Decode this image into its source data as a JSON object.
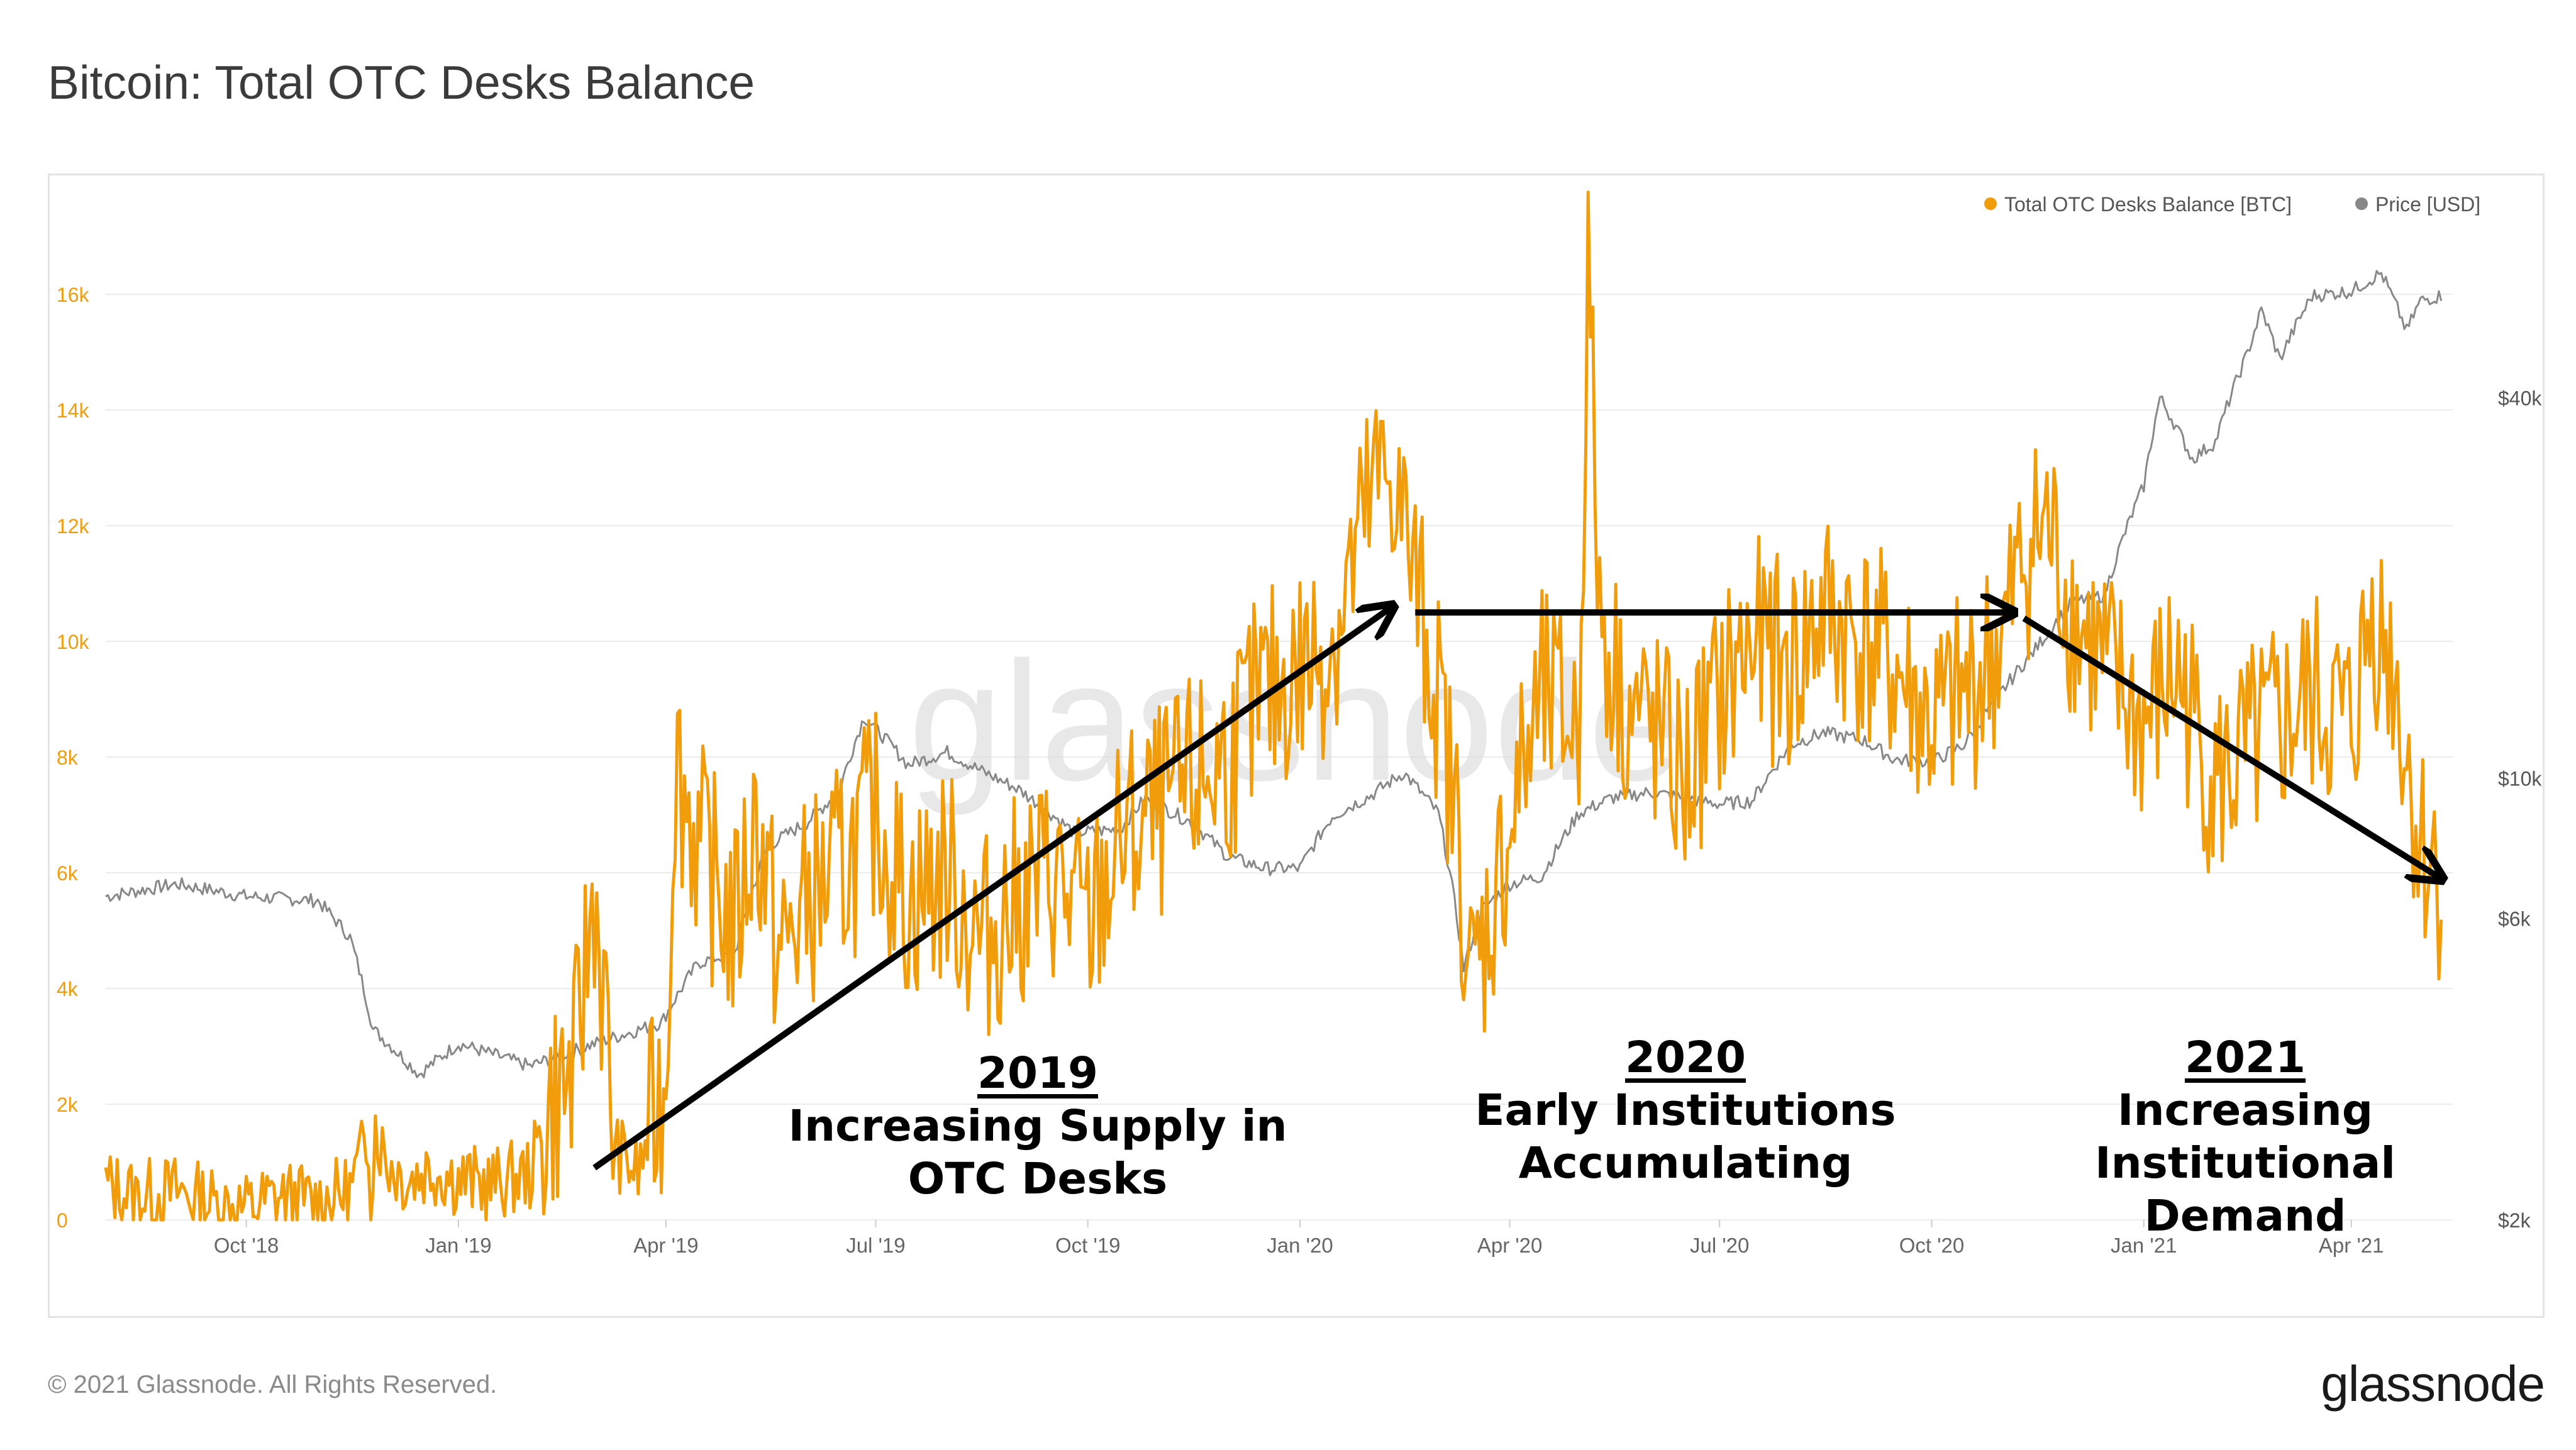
{
  "page": {
    "title": "Bitcoin: Total OTC Desks Balance",
    "copyright": "© 2021 Glassnode. All Rights Reserved.",
    "brand": "glassnode"
  },
  "annotations": [
    {
      "year": "2019",
      "lines": [
        "Increasing Supply in",
        "OTC Desks"
      ],
      "color": "#d1124f"
    },
    {
      "year": "2020",
      "lines": [
        "Early Institutions",
        "Accumulating"
      ],
      "color": "#1c8fa6"
    },
    {
      "year": "2021",
      "lines": [
        "Increasing Institutional",
        "Demand"
      ],
      "color": "#12a454"
    }
  ],
  "trend_arrows": [
    {
      "from": [
        "2019-03-01",
        900
      ],
      "to": [
        "2020-02-10",
        10600
      ]
    },
    {
      "from": [
        "2020-02-20",
        10500
      ],
      "to": [
        "2020-11-05",
        10500
      ]
    },
    {
      "from": [
        "2020-11-10",
        10400
      ],
      "to": [
        "2021-05-10",
        5900
      ]
    }
  ],
  "chart_data": {
    "type": "line",
    "title": "Bitcoin: Total OTC Desks Balance",
    "watermark": "glassnode",
    "legend": {
      "position": "top-right",
      "entries": [
        {
          "name": "Total OTC Desks Balance [BTC]",
          "color": "#f19d0b"
        },
        {
          "name": "Price [USD]",
          "color": "#888888"
        }
      ]
    },
    "x_range": [
      "2018-08-01",
      "2021-05-15"
    ],
    "x_ticks": [
      {
        "date": "2018-10-01",
        "label": "Oct '18"
      },
      {
        "date": "2019-01-01",
        "label": "Jan '19"
      },
      {
        "date": "2019-04-01",
        "label": "Apr '19"
      },
      {
        "date": "2019-07-01",
        "label": "Jul '19"
      },
      {
        "date": "2019-10-01",
        "label": "Oct '19"
      },
      {
        "date": "2020-01-01",
        "label": "Jan '20"
      },
      {
        "date": "2020-04-01",
        "label": "Apr '20"
      },
      {
        "date": "2020-07-01",
        "label": "Jul '20"
      },
      {
        "date": "2020-10-01",
        "label": "Oct '20"
      },
      {
        "date": "2021-01-01",
        "label": "Jan '21"
      },
      {
        "date": "2021-04-01",
        "label": "Apr '21"
      }
    ],
    "y_left": {
      "scale": "linear",
      "range": [
        0,
        17500
      ],
      "color": "#f19d0b",
      "grid": true,
      "ticks": [
        {
          "value": 0,
          "label": "0"
        },
        {
          "value": 2000,
          "label": "2k"
        },
        {
          "value": 4000,
          "label": "4k"
        },
        {
          "value": 6000,
          "label": "6k"
        },
        {
          "value": 8000,
          "label": "8k"
        },
        {
          "value": 10000,
          "label": "10k"
        },
        {
          "value": 12000,
          "label": "12k"
        },
        {
          "value": 14000,
          "label": "14k"
        },
        {
          "value": 16000,
          "label": "16k"
        }
      ]
    },
    "y_right": {
      "scale": "log",
      "range": [
        2000,
        80000
      ],
      "color": "#555555",
      "ticks": [
        {
          "value": 2000,
          "label": "$2k"
        },
        {
          "value": 6000,
          "label": "$6k"
        },
        {
          "value": 10000,
          "label": "$10k"
        },
        {
          "value": 40000,
          "label": "$40k"
        }
      ]
    },
    "series": [
      {
        "name": "Total OTC Desks Balance [BTC]",
        "axis": "left",
        "color": "#f19d0b",
        "x": [
          "2018-08-01",
          "2018-08-15",
          "2018-09-01",
          "2018-09-15",
          "2018-10-01",
          "2018-10-15",
          "2018-11-01",
          "2018-11-15",
          "2018-11-25",
          "2018-12-01",
          "2018-12-10",
          "2018-12-20",
          "2019-01-01",
          "2019-01-15",
          "2019-02-01",
          "2019-02-10",
          "2019-02-20",
          "2019-03-01",
          "2019-03-10",
          "2019-03-20",
          "2019-03-25",
          "2019-04-01",
          "2019-04-05",
          "2019-04-15",
          "2019-05-01",
          "2019-05-10",
          "2019-05-20",
          "2019-06-01",
          "2019-06-15",
          "2019-07-01",
          "2019-07-15",
          "2019-08-01",
          "2019-08-15",
          "2019-09-01",
          "2019-09-15",
          "2019-10-01",
          "2019-10-15",
          "2019-11-01",
          "2019-11-15",
          "2019-12-01",
          "2019-12-15",
          "2020-01-01",
          "2020-01-15",
          "2020-02-01",
          "2020-02-10",
          "2020-02-20",
          "2020-03-01",
          "2020-03-10",
          "2020-03-15",
          "2020-03-25",
          "2020-04-05",
          "2020-04-15",
          "2020-05-01",
          "2020-05-05",
          "2020-05-10",
          "2020-05-20",
          "2020-06-01",
          "2020-06-10",
          "2020-06-15",
          "2020-07-01",
          "2020-07-15",
          "2020-08-01",
          "2020-08-15",
          "2020-09-01",
          "2020-09-15",
          "2020-10-01",
          "2020-10-15",
          "2020-11-01",
          "2020-11-10",
          "2020-11-20",
          "2020-12-01",
          "2020-12-15",
          "2021-01-01",
          "2021-01-15",
          "2021-02-01",
          "2021-02-15",
          "2021-03-01",
          "2021-03-15",
          "2021-04-01",
          "2021-04-10",
          "2021-04-20",
          "2021-04-25",
          "2021-05-01",
          "2021-05-10"
        ],
        "values": [
          600,
          400,
          500,
          300,
          200,
          400,
          300,
          500,
          1700,
          1000,
          700,
          900,
          700,
          600,
          800,
          2000,
          2500,
          5800,
          1200,
          800,
          1500,
          2500,
          8000,
          6500,
          5000,
          7000,
          4500,
          5500,
          6000,
          7000,
          5500,
          6000,
          4800,
          5500,
          6000,
          5000,
          6500,
          7000,
          7500,
          8000,
          9000,
          9500,
          10000,
          12500,
          13000,
          11000,
          9000,
          6500,
          4000,
          5500,
          7500,
          9000,
          8500,
          16500,
          10500,
          9000,
          8500,
          8000,
          7500,
          9000,
          10000,
          9500,
          10500,
          10000,
          9500,
          8500,
          9000,
          10000,
          11500,
          12000,
          10500,
          9500,
          8500,
          9500,
          7500,
          8000,
          8500,
          9000,
          8500,
          10500,
          9500,
          8000,
          6500,
          6000
        ]
      },
      {
        "name": "Price [USD]",
        "axis": "right",
        "color": "#888888",
        "x": [
          "2018-08-01",
          "2018-09-01",
          "2018-10-01",
          "2018-11-01",
          "2018-11-15",
          "2018-11-25",
          "2018-12-15",
          "2019-01-01",
          "2019-02-01",
          "2019-03-01",
          "2019-03-30",
          "2019-04-15",
          "2019-05-01",
          "2019-05-15",
          "2019-06-01",
          "2019-06-15",
          "2019-06-26",
          "2019-07-15",
          "2019-08-01",
          "2019-08-15",
          "2019-09-01",
          "2019-09-25",
          "2019-10-15",
          "2019-10-26",
          "2019-11-15",
          "2019-12-01",
          "2019-12-17",
          "2020-01-01",
          "2020-01-15",
          "2020-02-01",
          "2020-02-15",
          "2020-03-01",
          "2020-03-12",
          "2020-03-20",
          "2020-04-01",
          "2020-04-15",
          "2020-05-01",
          "2020-05-15",
          "2020-06-01",
          "2020-07-01",
          "2020-07-15",
          "2020-08-01",
          "2020-08-15",
          "2020-09-01",
          "2020-09-15",
          "2020-10-01",
          "2020-10-15",
          "2020-11-01",
          "2020-11-15",
          "2020-12-01",
          "2020-12-15",
          "2021-01-01",
          "2021-01-08",
          "2021-01-22",
          "2021-02-01",
          "2021-02-15",
          "2021-02-21",
          "2021-03-01",
          "2021-03-15",
          "2021-04-01",
          "2021-04-14",
          "2021-04-25",
          "2021-05-01",
          "2021-05-10"
        ],
        "values": [
          6500,
          6800,
          6500,
          6400,
          5600,
          4000,
          3400,
          3800,
          3500,
          3800,
          4100,
          5100,
          5300,
          7800,
          8500,
          9500,
          12500,
          10500,
          11000,
          10300,
          9600,
          8200,
          8300,
          9300,
          8500,
          7500,
          7200,
          7200,
          8700,
          9400,
          10200,
          8800,
          5000,
          6200,
          6800,
          7000,
          8800,
          9300,
          9500,
          9100,
          9200,
          11300,
          11800,
          11500,
          10700,
          10600,
          11300,
          13800,
          16000,
          19000,
          19500,
          29000,
          40000,
          32000,
          34000,
          47000,
          55000,
          46000,
          58000,
          59000,
          63000,
          51000,
          57000,
          58000
        ]
      }
    ]
  }
}
